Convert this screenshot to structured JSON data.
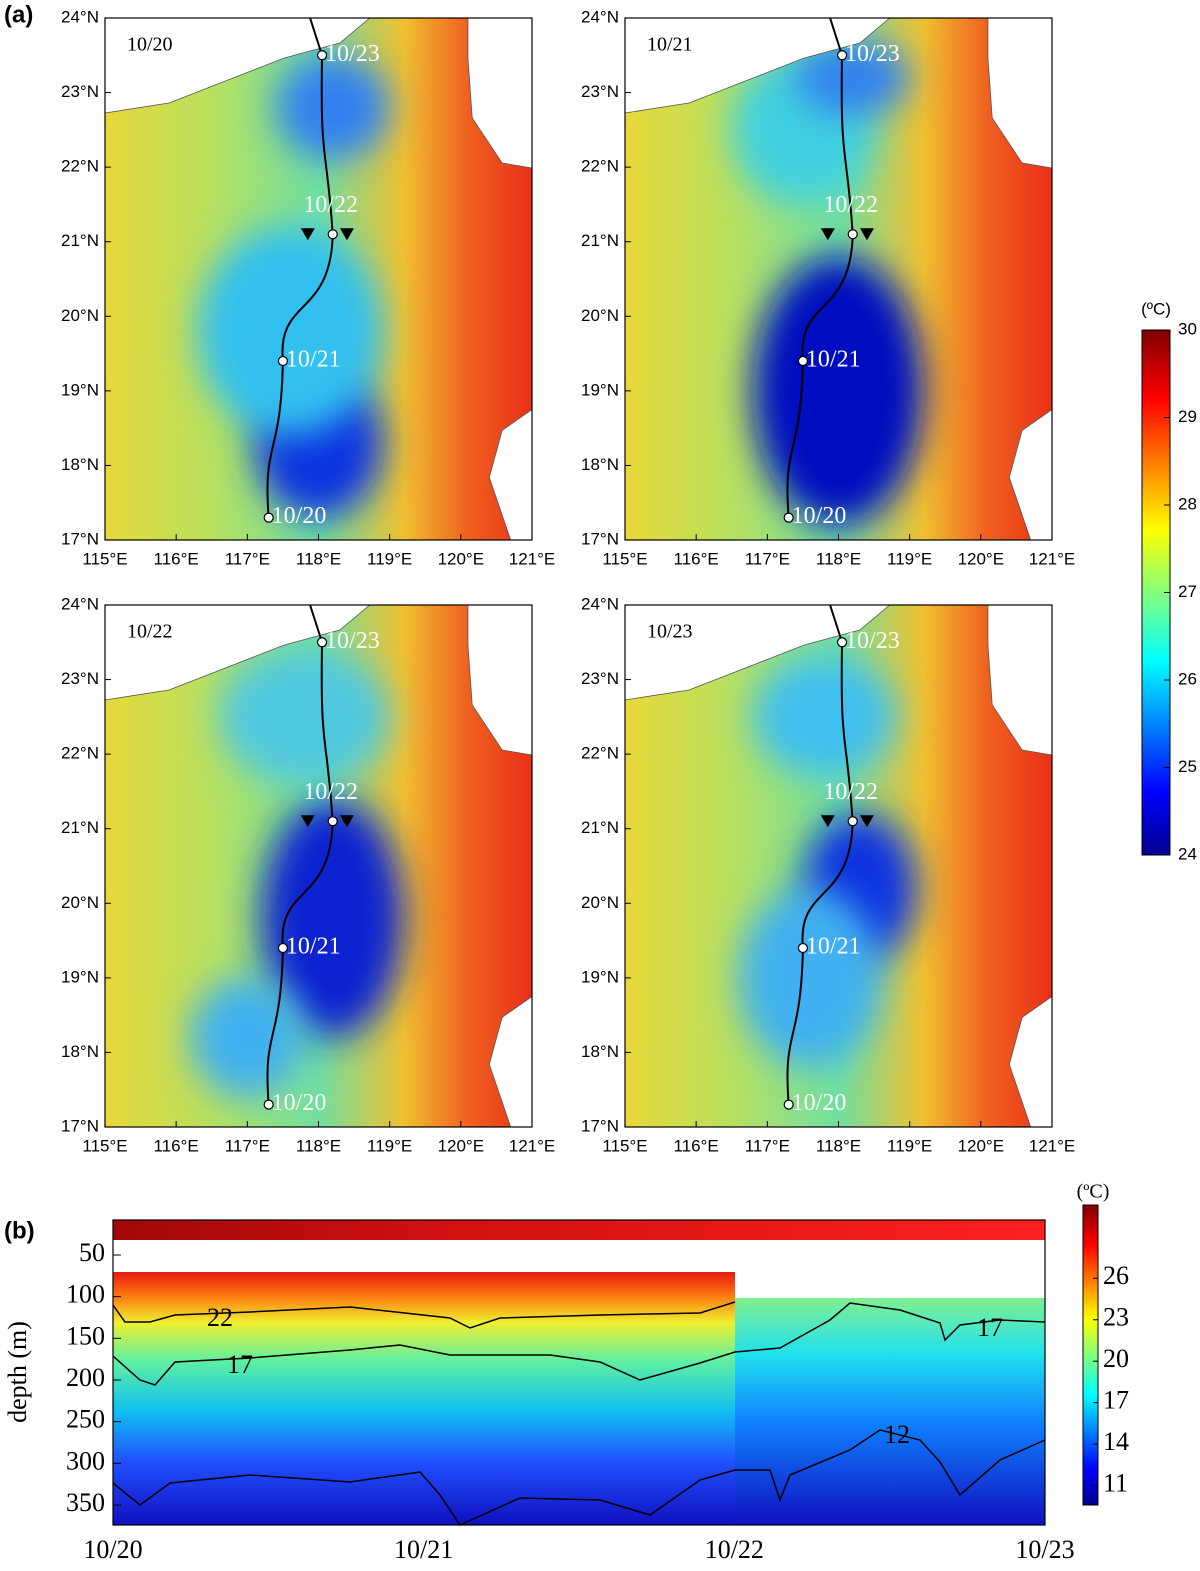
{
  "chart_data": [
    {
      "type": "map",
      "label": "(a)",
      "dates": [
        "10/20",
        "10/21",
        "10/22",
        "10/23"
      ],
      "xlim": [
        115,
        121
      ],
      "xticks": [
        {
          "value": 115,
          "label": "115°E"
        },
        {
          "value": 116,
          "label": "116°E"
        },
        {
          "value": 117,
          "label": "117°E"
        },
        {
          "value": 118,
          "label": "118°E"
        },
        {
          "value": 119,
          "label": "119°E"
        },
        {
          "value": 120,
          "label": "120°E"
        },
        {
          "value": 121,
          "label": "121°E"
        }
      ],
      "ylim": [
        17,
        24
      ],
      "yticks": [
        {
          "value": 17,
          "label": "17°N"
        },
        {
          "value": 18,
          "label": "18°N"
        },
        {
          "value": 19,
          "label": "19°N"
        },
        {
          "value": 20,
          "label": "20°N"
        },
        {
          "value": 21,
          "label": "21°N"
        },
        {
          "value": 22,
          "label": "22°N"
        },
        {
          "value": 23,
          "label": "23°N"
        },
        {
          "value": 24,
          "label": "24°N"
        }
      ],
      "track": {
        "lon": [
          117.3,
          117.5,
          118.2,
          118.05
        ],
        "lat": [
          17.3,
          19.4,
          21.1,
          23.5
        ],
        "labels": [
          "10/20",
          "10/21",
          "10/22",
          "10/23"
        ]
      },
      "stations": {
        "lon": [
          117.85,
          118.4
        ],
        "lat": [
          21.1,
          21.1
        ]
      },
      "colorbar": {
        "label": "(ºC)",
        "lim": [
          24,
          30
        ],
        "ticks": [
          24,
          25,
          26,
          27,
          28,
          29,
          30
        ]
      }
    },
    {
      "type": "heatmap",
      "label": "(b)",
      "ylabel": "depth (m)",
      "ylim": [
        8,
        374
      ],
      "yticks": [
        50,
        100,
        150,
        200,
        250,
        300,
        350
      ],
      "xticks": [
        "10/20",
        "10/21",
        "10/22",
        "10/23"
      ],
      "contour_labels": [
        "22",
        "17",
        "17",
        "12"
      ],
      "colorbar": {
        "label": "(ºC)",
        "lim": [
          9.6,
          31.3
        ],
        "ticks": [
          11,
          14,
          17,
          20,
          23,
          26
        ]
      }
    }
  ]
}
